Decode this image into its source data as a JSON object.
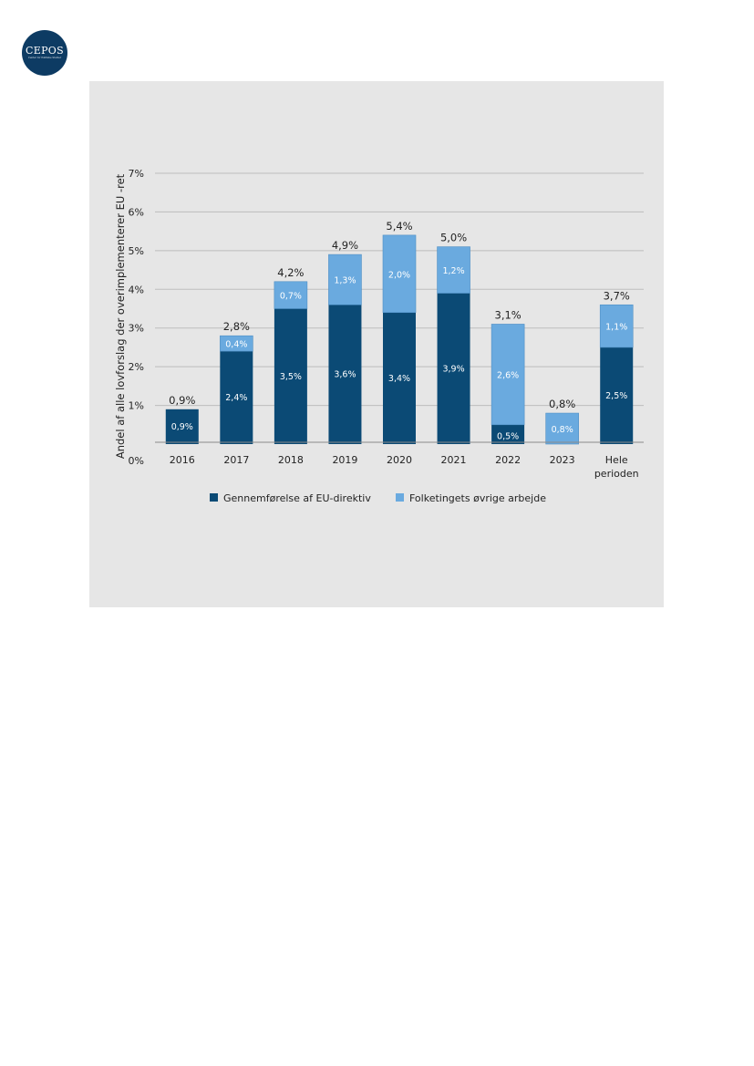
{
  "logo": {
    "text": "CEPOS",
    "subtext": "Center for Politiske Studier"
  },
  "chart_data": {
    "type": "bar",
    "stacked": true,
    "categories": [
      "2016",
      "2017",
      "2018",
      "2019",
      "2020",
      "2021",
      "2022",
      "2023",
      "Hele perioden"
    ],
    "ylabel": "Andel af alle lovforslag der overimplementerer EU -ret",
    "ylim": [
      0,
      7
    ],
    "yticks": [
      "0%",
      "1%",
      "2%",
      "3%",
      "4%",
      "5%",
      "6%",
      "7%"
    ],
    "grid": true,
    "legend_position": "bottom",
    "series": [
      {
        "name": "Gennemførelse af EU-direktiv",
        "color": "#0b4a75",
        "values": [
          0.9,
          2.4,
          3.5,
          3.6,
          3.4,
          3.9,
          0.5,
          0.0,
          2.5
        ],
        "labels": [
          "0,9%",
          "2,4%",
          "3,5%",
          "3,6%",
          "3,4%",
          "3,9%",
          "0,5%",
          "",
          "2,5%"
        ]
      },
      {
        "name": "Folketingets øvrige arbejde",
        "color": "#6aaadf",
        "values": [
          0.0,
          0.4,
          0.7,
          1.3,
          2.0,
          1.2,
          2.6,
          0.8,
          1.1
        ],
        "labels": [
          "",
          "0,4%",
          "0,7%",
          "1,3%",
          "2,0%",
          "1,2%",
          "2,6%",
          "0,8%",
          "1,1%"
        ]
      }
    ],
    "totals": [
      "0,9%",
      "2,8%",
      "4,2%",
      "4,9%",
      "5,4%",
      "5,0%",
      "3,1%",
      "0,8%",
      "3,7%"
    ]
  }
}
